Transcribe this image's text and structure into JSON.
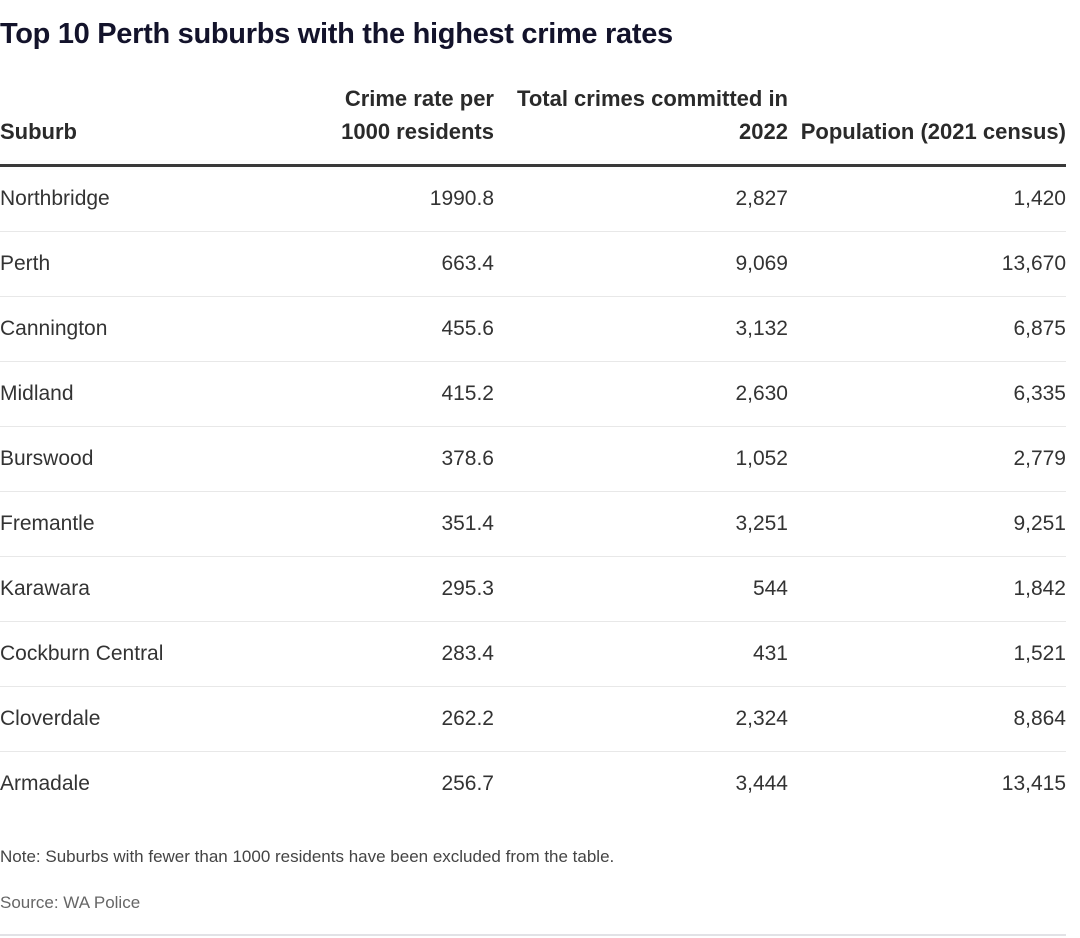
{
  "chart_data": {
    "type": "table",
    "title": "Top 10 Perth suburbs with the highest crime rates",
    "columns": [
      "Suburb",
      "Crime rate per 1000 residents",
      "Total crimes committed in 2022",
      "Population (2021 census)"
    ],
    "rows": [
      [
        "Northbridge",
        "1990.8",
        "2,827",
        "1,420"
      ],
      [
        "Perth",
        "663.4",
        "9,069",
        "13,670"
      ],
      [
        "Cannington",
        "455.6",
        "3,132",
        "6,875"
      ],
      [
        "Midland",
        "415.2",
        "2,630",
        "6,335"
      ],
      [
        "Burswood",
        "378.6",
        "1,052",
        "2,779"
      ],
      [
        "Fremantle",
        "351.4",
        "3,251",
        "9,251"
      ],
      [
        "Karawara",
        "295.3",
        "544",
        "1,842"
      ],
      [
        "Cockburn Central",
        "283.4",
        "431",
        "1,521"
      ],
      [
        "Cloverdale",
        "262.2",
        "2,324",
        "8,864"
      ],
      [
        "Armadale",
        "256.7",
        "3,444",
        "13,415"
      ]
    ],
    "note": "Note: Suburbs with fewer than 1000 residents have been excluded from the table.",
    "source": "Source: WA Police"
  }
}
